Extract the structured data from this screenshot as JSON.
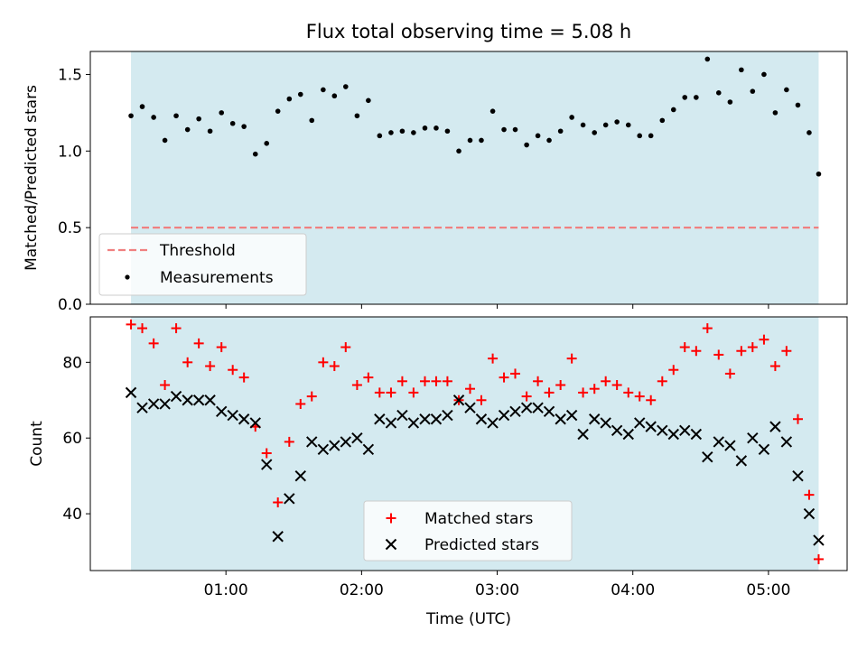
{
  "chart_data": [
    {
      "type": "scatter",
      "title": "Flux total observing time = 5.08 h",
      "xlabel": "",
      "ylabel": "Matched/Predicted stars",
      "ylim": [
        0,
        1.65
      ],
      "yticks": [
        "0.0",
        "0.5",
        "1.0",
        "1.5"
      ],
      "xticks": [
        "01:00",
        "02:00",
        "03:00",
        "04:00",
        "05:00"
      ],
      "xrange_hours": [
        0.0,
        5.58
      ],
      "shaded_span_hours": [
        0.3,
        5.37
      ],
      "threshold": {
        "name": "Threshold",
        "value": 0.5,
        "x_start": 0.3,
        "x_end": 5.37,
        "color": "#f08080"
      },
      "series": [
        {
          "name": "Measurements",
          "color": "#000000",
          "x": [
            0.3,
            0.383,
            0.467,
            0.55,
            0.633,
            0.717,
            0.8,
            0.883,
            0.967,
            1.05,
            1.133,
            1.217,
            1.3,
            1.383,
            1.467,
            1.55,
            1.633,
            1.717,
            1.8,
            1.883,
            1.967,
            2.05,
            2.133,
            2.217,
            2.3,
            2.383,
            2.467,
            2.55,
            2.633,
            2.717,
            2.8,
            2.883,
            2.967,
            3.05,
            3.133,
            3.217,
            3.3,
            3.383,
            3.467,
            3.55,
            3.633,
            3.717,
            3.8,
            3.883,
            3.967,
            4.05,
            4.133,
            4.217,
            4.3,
            4.383,
            4.467,
            4.55,
            4.633,
            4.717,
            4.8,
            4.883,
            4.967,
            5.05,
            5.133,
            5.217,
            5.3,
            5.37
          ],
          "y": [
            1.23,
            1.29,
            1.22,
            1.07,
            1.23,
            1.14,
            1.21,
            1.13,
            1.25,
            1.18,
            1.16,
            0.98,
            1.05,
            1.26,
            1.34,
            1.37,
            1.2,
            1.4,
            1.36,
            1.42,
            1.23,
            1.33,
            1.1,
            1.12,
            1.13,
            1.12,
            1.15,
            1.15,
            1.13,
            1.0,
            1.07,
            1.07,
            1.26,
            1.14,
            1.14,
            1.04,
            1.1,
            1.07,
            1.13,
            1.22,
            1.17,
            1.12,
            1.17,
            1.19,
            1.17,
            1.1,
            1.1,
            1.2,
            1.27,
            1.35,
            1.35,
            1.6,
            1.38,
            1.32,
            1.53,
            1.39,
            1.5,
            1.25,
            1.4,
            1.3,
            1.12,
            0.85
          ]
        }
      ],
      "legend_position": "lower-left"
    },
    {
      "type": "scatter",
      "title": "",
      "xlabel": "Time (UTC)",
      "ylabel": "Count",
      "ylim": [
        25,
        92
      ],
      "yticks": [
        "40",
        "60",
        "80"
      ],
      "xticks": [
        "01:00",
        "02:00",
        "03:00",
        "04:00",
        "05:00"
      ],
      "xrange_hours": [
        0.0,
        5.58
      ],
      "shaded_span_hours": [
        0.3,
        5.37
      ],
      "series": [
        {
          "name": "Matched stars",
          "marker": "plus",
          "color": "#ff0000",
          "x": [
            0.3,
            0.383,
            0.467,
            0.55,
            0.633,
            0.717,
            0.8,
            0.883,
            0.967,
            1.05,
            1.133,
            1.217,
            1.3,
            1.383,
            1.467,
            1.55,
            1.633,
            1.717,
            1.8,
            1.883,
            1.967,
            2.05,
            2.133,
            2.217,
            2.3,
            2.383,
            2.467,
            2.55,
            2.633,
            2.717,
            2.8,
            2.883,
            2.967,
            3.05,
            3.133,
            3.217,
            3.3,
            3.383,
            3.467,
            3.55,
            3.633,
            3.717,
            3.8,
            3.883,
            3.967,
            4.05,
            4.133,
            4.217,
            4.3,
            4.383,
            4.467,
            4.55,
            4.633,
            4.717,
            4.8,
            4.883,
            4.967,
            5.05,
            5.133,
            5.217,
            5.3,
            5.37
          ],
          "y": [
            90,
            89,
            85,
            74,
            89,
            80,
            85,
            79,
            84,
            78,
            76,
            63,
            56,
            43,
            59,
            69,
            71,
            80,
            79,
            84,
            74,
            76,
            72,
            72,
            75,
            72,
            75,
            75,
            75,
            70,
            73,
            70,
            81,
            76,
            77,
            71,
            75,
            72,
            74,
            81,
            72,
            73,
            75,
            74,
            72,
            71,
            70,
            75,
            78,
            84,
            83,
            89,
            82,
            77,
            83,
            84,
            86,
            79,
            83,
            65,
            45,
            28
          ]
        },
        {
          "name": "Predicted stars",
          "marker": "x",
          "color": "#000000",
          "x": [
            0.3,
            0.383,
            0.467,
            0.55,
            0.633,
            0.717,
            0.8,
            0.883,
            0.967,
            1.05,
            1.133,
            1.217,
            1.3,
            1.383,
            1.467,
            1.55,
            1.633,
            1.717,
            1.8,
            1.883,
            1.967,
            2.05,
            2.133,
            2.217,
            2.3,
            2.383,
            2.467,
            2.55,
            2.633,
            2.717,
            2.8,
            2.883,
            2.967,
            3.05,
            3.133,
            3.217,
            3.3,
            3.383,
            3.467,
            3.55,
            3.633,
            3.717,
            3.8,
            3.883,
            3.967,
            4.05,
            4.133,
            4.217,
            4.3,
            4.383,
            4.467,
            4.55,
            4.633,
            4.717,
            4.8,
            4.883,
            4.967,
            5.05,
            5.133,
            5.217,
            5.3,
            5.37
          ],
          "y": [
            72,
            68,
            69,
            69,
            71,
            70,
            70,
            70,
            67,
            66,
            65,
            64,
            53,
            34,
            44,
            50,
            59,
            57,
            58,
            59,
            60,
            57,
            65,
            64,
            66,
            64,
            65,
            65,
            66,
            70,
            68,
            65,
            64,
            66,
            67,
            68,
            68,
            67,
            65,
            66,
            61,
            65,
            64,
            62,
            61,
            64,
            63,
            62,
            61,
            62,
            61,
            55,
            59,
            58,
            54,
            60,
            57,
            63,
            59,
            50,
            40,
            33
          ]
        }
      ],
      "legend_position": "lower-center"
    }
  ],
  "colors": {
    "shade": "#add8e6",
    "shade_alpha": 0.5
  }
}
